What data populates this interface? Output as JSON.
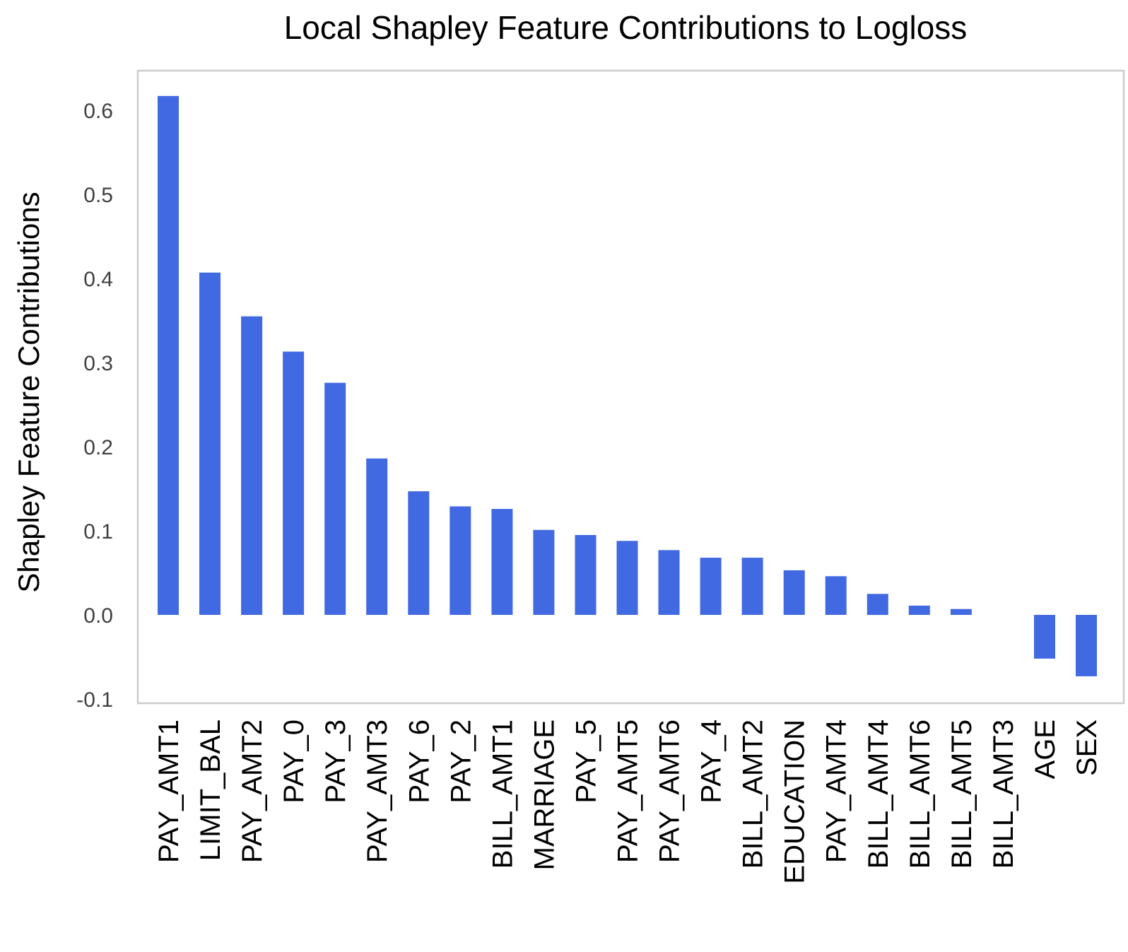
{
  "chart_data": {
    "type": "bar",
    "title": "Local Shapley Feature Contributions to Logloss",
    "xlabel": "",
    "ylabel": "Shapley Feature Contributions",
    "ylim": [
      -0.105,
      0.645
    ],
    "yticks": [
      -0.1,
      0.0,
      0.1,
      0.2,
      0.3,
      0.4,
      0.5,
      0.6
    ],
    "ytick_labels": [
      "-0.1",
      "0.0",
      "0.1",
      "0.2",
      "0.3",
      "0.4",
      "0.5",
      "0.6"
    ],
    "grid": false,
    "bar_color": "#4169E1",
    "frame_color": "#cccccc",
    "categories": [
      "PAY_AMT1",
      "LIMIT_BAL",
      "PAY_AMT2",
      "PAY_0",
      "PAY_3",
      "PAY_AMT3",
      "PAY_6",
      "PAY_2",
      "BILL_AMT1",
      "MARRIAGE",
      "PAY_5",
      "PAY_AMT5",
      "PAY_AMT6",
      "PAY_4",
      "BILL_AMT2",
      "EDUCATION",
      "PAY_AMT4",
      "BILL_AMT4",
      "BILL_AMT6",
      "BILL_AMT5",
      "BILL_AMT3",
      "AGE",
      "SEX"
    ],
    "values": [
      0.617,
      0.407,
      0.355,
      0.313,
      0.276,
      0.186,
      0.147,
      0.129,
      0.126,
      0.101,
      0.095,
      0.088,
      0.077,
      0.068,
      0.068,
      0.053,
      0.046,
      0.025,
      0.011,
      0.007,
      0.0,
      -0.052,
      -0.073
    ]
  }
}
